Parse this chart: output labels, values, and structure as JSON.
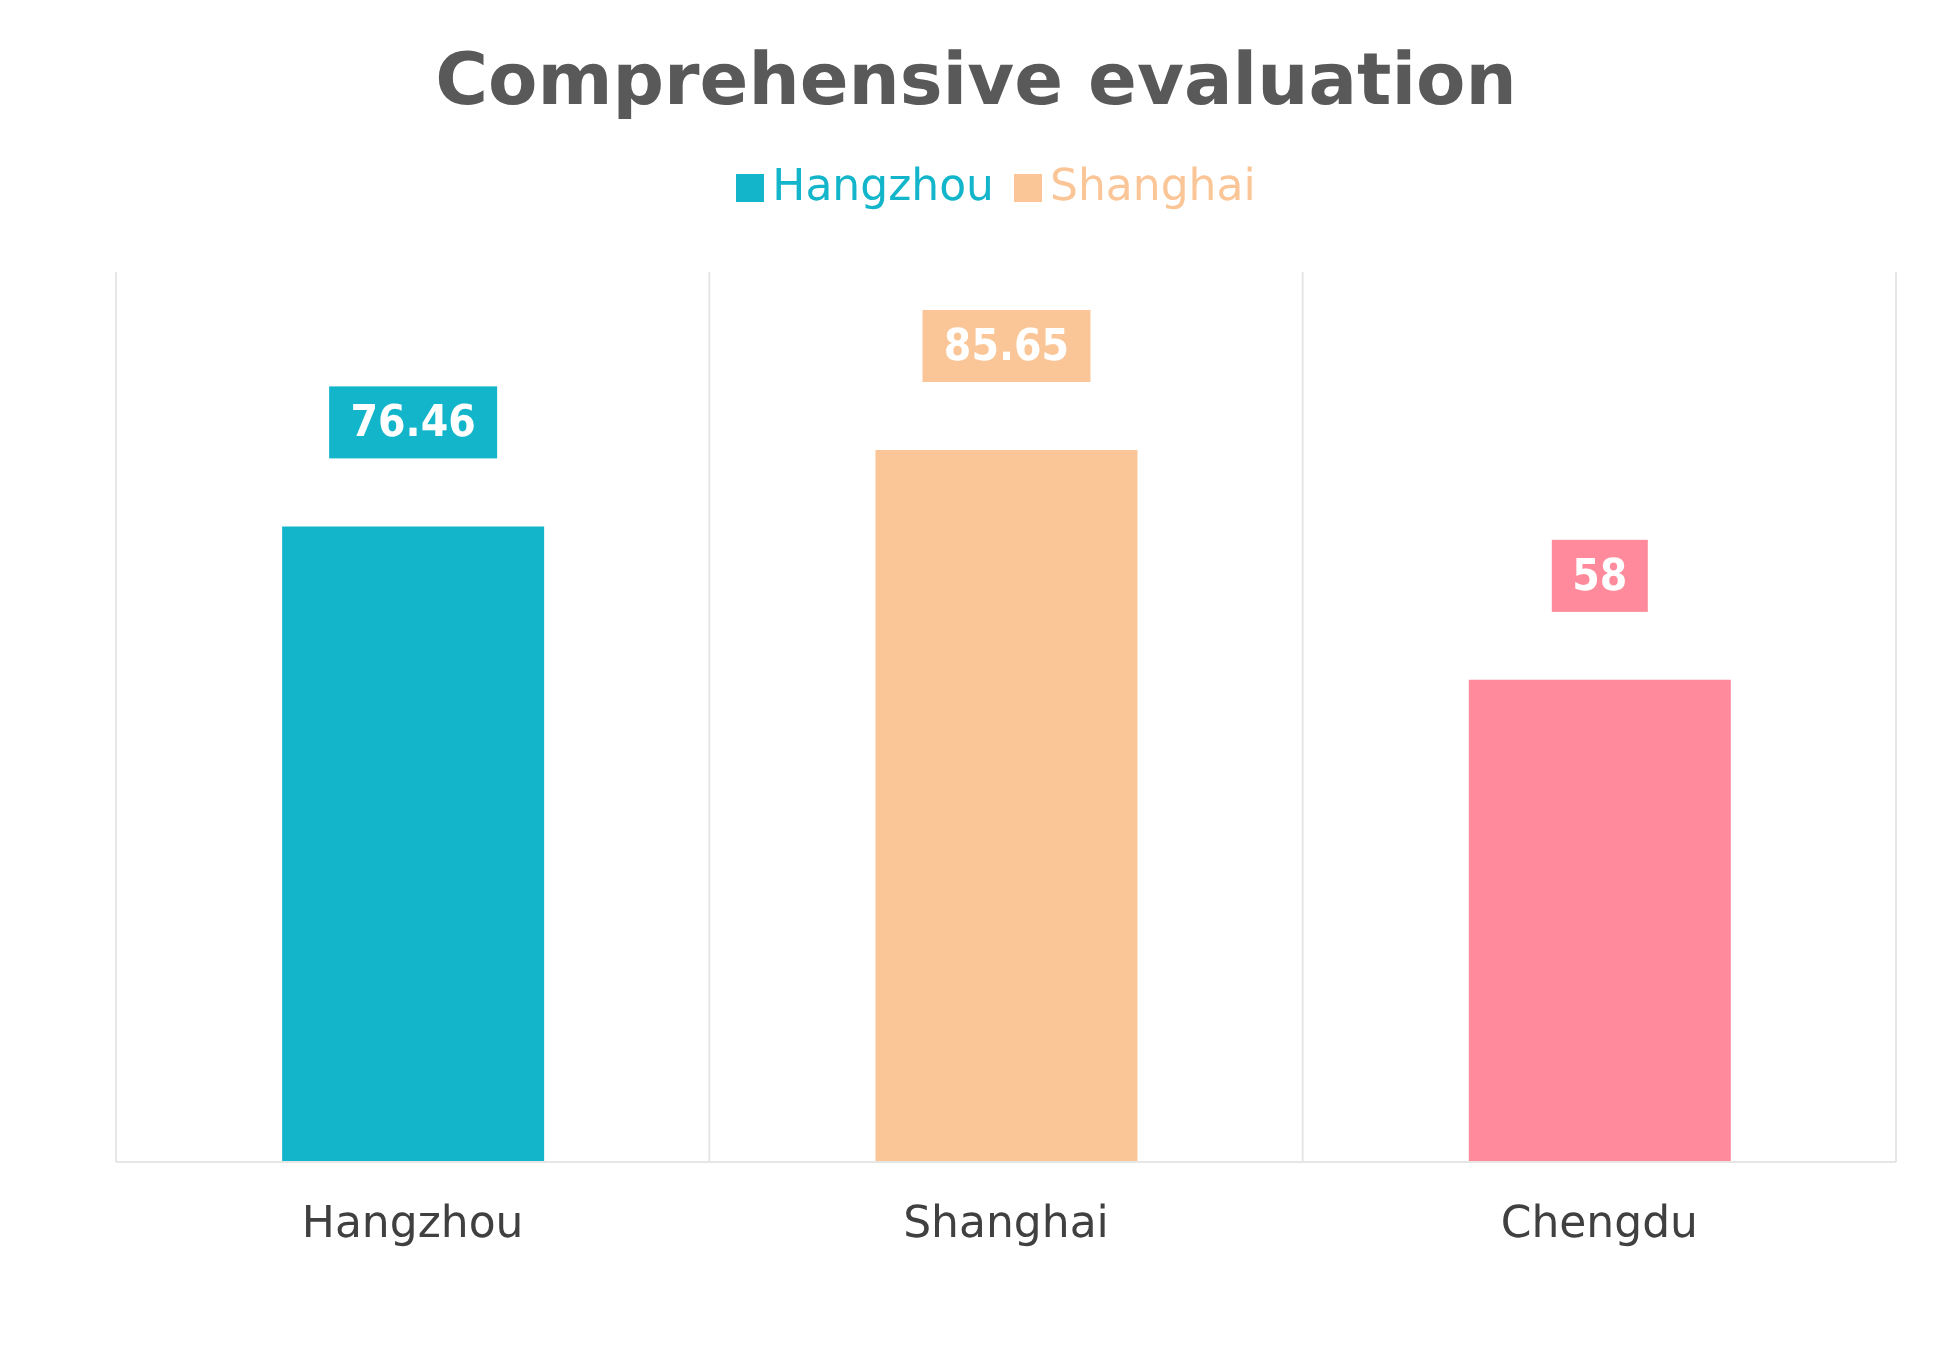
{
  "chart_data": {
    "type": "bar",
    "title": "Comprehensive evaluation",
    "categories": [
      "Hangzhou",
      "Shanghai",
      "Chengdu"
    ],
    "series": [
      {
        "name": "Hangzhou",
        "color": "#12b5c9",
        "values": [
          76.46,
          null,
          null
        ]
      },
      {
        "name": "Shanghai",
        "color": "#fbc697",
        "values": [
          null,
          85.65,
          null
        ]
      },
      {
        "color": "#fe8a9b",
        "values": [
          null,
          null,
          58
        ]
      }
    ],
    "stacked": true,
    "data_labels": true,
    "legend": "top",
    "grid": "x",
    "tick_labels": "x"
  }
}
